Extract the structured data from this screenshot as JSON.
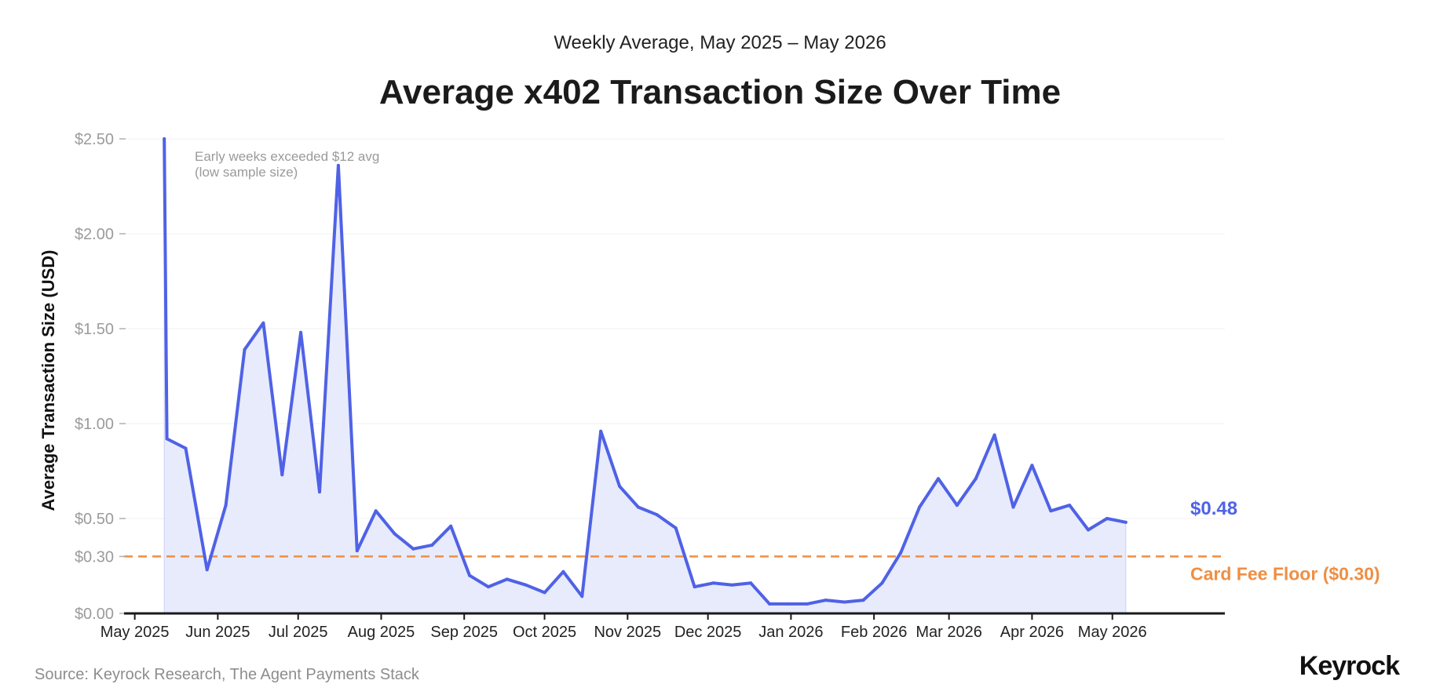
{
  "header": {
    "subtitle": "Weekly Average, May 2025 – May 2026",
    "title": "Average x402 Transaction Size Over Time"
  },
  "footer": {
    "source": "Source: Keyrock Research, The Agent Payments Stack",
    "brand": "Keyrock"
  },
  "chart_data": {
    "type": "area",
    "title": "Average x402 Transaction Size Over Time",
    "subtitle": "Weekly Average, May 2025 – May 2026",
    "xlabel": "",
    "ylabel": "Average Transaction Size (USD)",
    "ylim": [
      0,
      2.5
    ],
    "yticks": [
      {
        "value": 0,
        "label": "$0.00"
      },
      {
        "value": 0.3,
        "label": "$0.30"
      },
      {
        "value": 0.5,
        "label": "$0.50"
      },
      {
        "value": 1.0,
        "label": "$1.00"
      },
      {
        "value": 1.5,
        "label": "$1.50"
      },
      {
        "value": 2.0,
        "label": "$2.00"
      },
      {
        "value": 2.5,
        "label": "$2.50"
      }
    ],
    "xticks": [
      "May 2025",
      "Jun 2025",
      "Jul 2025",
      "Aug 2025",
      "Sep 2025",
      "Oct 2025",
      "Nov 2025",
      "Dec 2025",
      "Jan 2026",
      "Feb 2026",
      "Mar 2026",
      "Apr 2026",
      "May 2026"
    ],
    "xlim": [
      "2025-04-27",
      "2026-06-12"
    ],
    "grid": true,
    "series": [
      {
        "color": "#4f62e6",
        "fill": "#e8ebfb",
        "points": [
          {
            "x": "2025-05-12",
            "y": 2.5
          },
          {
            "x": "2025-05-13",
            "y": 0.92
          },
          {
            "x": "2025-05-20",
            "y": 0.87
          },
          {
            "x": "2025-05-28",
            "y": 0.23
          },
          {
            "x": "2025-06-04",
            "y": 0.57
          },
          {
            "x": "2025-06-11",
            "y": 1.39
          },
          {
            "x": "2025-06-18",
            "y": 1.53
          },
          {
            "x": "2025-06-25",
            "y": 0.73
          },
          {
            "x": "2025-07-02",
            "y": 1.48
          },
          {
            "x": "2025-07-09",
            "y": 0.64
          },
          {
            "x": "2025-07-16",
            "y": 2.36
          },
          {
            "x": "2025-07-23",
            "y": 0.33
          },
          {
            "x": "2025-07-30",
            "y": 0.54
          },
          {
            "x": "2025-08-06",
            "y": 0.42
          },
          {
            "x": "2025-08-13",
            "y": 0.34
          },
          {
            "x": "2025-08-20",
            "y": 0.36
          },
          {
            "x": "2025-08-27",
            "y": 0.46
          },
          {
            "x": "2025-09-03",
            "y": 0.2
          },
          {
            "x": "2025-09-10",
            "y": 0.14
          },
          {
            "x": "2025-09-17",
            "y": 0.18
          },
          {
            "x": "2025-09-24",
            "y": 0.15
          },
          {
            "x": "2025-10-01",
            "y": 0.11
          },
          {
            "x": "2025-10-08",
            "y": 0.22
          },
          {
            "x": "2025-10-15",
            "y": 0.09
          },
          {
            "x": "2025-10-22",
            "y": 0.96
          },
          {
            "x": "2025-10-29",
            "y": 0.67
          },
          {
            "x": "2025-11-05",
            "y": 0.56
          },
          {
            "x": "2025-11-12",
            "y": 0.52
          },
          {
            "x": "2025-11-19",
            "y": 0.45
          },
          {
            "x": "2025-11-26",
            "y": 0.14
          },
          {
            "x": "2025-12-03",
            "y": 0.16
          },
          {
            "x": "2025-12-10",
            "y": 0.15
          },
          {
            "x": "2025-12-17",
            "y": 0.16
          },
          {
            "x": "2025-12-24",
            "y": 0.05
          },
          {
            "x": "2025-12-31",
            "y": 0.05
          },
          {
            "x": "2026-01-07",
            "y": 0.05
          },
          {
            "x": "2026-01-14",
            "y": 0.07
          },
          {
            "x": "2026-01-21",
            "y": 0.06
          },
          {
            "x": "2026-01-28",
            "y": 0.07
          },
          {
            "x": "2026-02-04",
            "y": 0.16
          },
          {
            "x": "2026-02-11",
            "y": 0.32
          },
          {
            "x": "2026-02-18",
            "y": 0.56
          },
          {
            "x": "2026-02-25",
            "y": 0.71
          },
          {
            "x": "2026-03-04",
            "y": 0.57
          },
          {
            "x": "2026-03-11",
            "y": 0.71
          },
          {
            "x": "2026-03-18",
            "y": 0.94
          },
          {
            "x": "2026-03-25",
            "y": 0.56
          },
          {
            "x": "2026-04-01",
            "y": 0.78
          },
          {
            "x": "2026-04-08",
            "y": 0.54
          },
          {
            "x": "2026-04-15",
            "y": 0.57
          },
          {
            "x": "2026-04-22",
            "y": 0.44
          },
          {
            "x": "2026-04-29",
            "y": 0.5
          },
          {
            "x": "2026-05-06",
            "y": 0.48
          }
        ]
      }
    ],
    "end_label": "$0.48",
    "reference_line": {
      "value": 0.3,
      "label": "Card Fee Floor ($0.30)",
      "color": "#ee8f45",
      "style": "dashed"
    },
    "annotation": {
      "lines": [
        "Early weeks exceeded $12 avg",
        "(low sample size)"
      ],
      "color": "#9a9a9a"
    }
  }
}
